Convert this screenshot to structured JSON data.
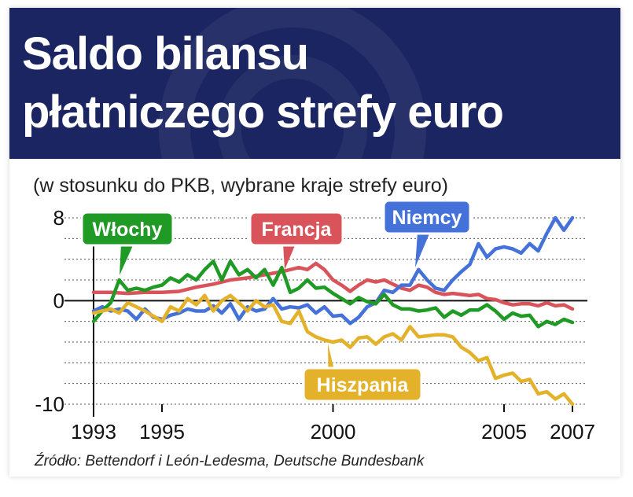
{
  "title": {
    "line1": "Saldo bilansu",
    "line2": "płatniczego strefy euro"
  },
  "subtitle": "(w stosunku do PKB, wybrane kraje strefy euro)",
  "source": "Źródło: Bettendorf i León-Ledesma, Deutsche Bundesbank",
  "colors": {
    "title_bg": "#1b2561",
    "Włochy": "#1f9a24",
    "Francja": "#d9545a",
    "Niemcy": "#4472d8",
    "Hiszpania": "#e4b12b"
  },
  "chart_data": {
    "type": "line",
    "title": "Saldo bilansu płatniczego strefy euro",
    "subtitle": "(w stosunku do PKB, wybrane kraje strefy euro)",
    "xlabel": "",
    "ylabel": "",
    "xlim": [
      1993,
      2007
    ],
    "ylim": [
      -10,
      8
    ],
    "x_ticks": [
      1993,
      1995,
      2000,
      2005,
      2007
    ],
    "y_ticks": [
      8,
      0,
      -10
    ],
    "grid": "dotted horizontal lines every 2 units",
    "legend": "callout labels",
    "series": [
      {
        "name": "Włochy",
        "x": [
          1993.0,
          1993.25,
          1993.5,
          1993.75,
          1994.0,
          1994.25,
          1994.5,
          1994.75,
          1995.0,
          1995.25,
          1995.5,
          1995.75,
          1996.0,
          1996.25,
          1996.5,
          1996.75,
          1997.0,
          1997.25,
          1997.5,
          1997.75,
          1998.0,
          1998.25,
          1998.5,
          1998.75,
          1999.0,
          1999.25,
          1999.5,
          1999.75,
          2000.0,
          2000.25,
          2000.5,
          2000.75,
          2001.0,
          2001.25,
          2001.5,
          2001.75,
          2002.0,
          2002.25,
          2002.5,
          2002.75,
          2003.0,
          2003.25,
          2003.5,
          2003.75,
          2004.0,
          2004.25,
          2004.5,
          2004.75,
          2005.0,
          2005.25,
          2005.5,
          2005.75,
          2006.0,
          2006.25,
          2006.5,
          2006.75,
          2007.0
        ],
        "values": [
          -2.0,
          -1.0,
          -0.2,
          2.0,
          1.0,
          1.2,
          1.0,
          1.3,
          1.5,
          2.2,
          1.8,
          2.5,
          2.0,
          3.0,
          3.8,
          2.0,
          3.8,
          2.5,
          3.0,
          2.2,
          3.0,
          1.5,
          3.2,
          0.8,
          1.2,
          2.0,
          1.2,
          1.3,
          0.7,
          0.2,
          -0.3,
          0.3,
          -0.1,
          -0.3,
          0.6,
          -0.4,
          -0.8,
          -0.8,
          -1.0,
          -0.9,
          -0.7,
          -1.6,
          -1.0,
          -1.4,
          -0.9,
          -0.9,
          -0.4,
          -1.0,
          -1.8,
          -1.2,
          -1.5,
          -1.4,
          -2.5,
          -2.0,
          -2.3,
          -1.8,
          -2.1
        ]
      },
      {
        "name": "Francja",
        "x": [
          1993.0,
          1993.5,
          1994.0,
          1994.5,
          1995.0,
          1995.5,
          1996.0,
          1996.5,
          1997.0,
          1997.5,
          1998.0,
          1998.5,
          1999.0,
          1999.25,
          1999.5,
          1999.75,
          2000.0,
          2000.25,
          2000.5,
          2000.75,
          2001.0,
          2001.25,
          2001.5,
          2001.75,
          2002.0,
          2002.25,
          2002.5,
          2002.75,
          2003.0,
          2003.25,
          2003.5,
          2003.75,
          2004.0,
          2004.25,
          2004.5,
          2004.75,
          2005.0,
          2005.25,
          2005.5,
          2005.75,
          2006.0,
          2006.25,
          2006.5,
          2006.75,
          2007.0
        ],
        "values": [
          0.8,
          0.8,
          0.7,
          0.8,
          0.8,
          0.9,
          1.3,
          1.6,
          2.0,
          2.2,
          2.5,
          2.8,
          3.2,
          3.0,
          3.6,
          3.0,
          2.0,
          1.5,
          0.9,
          1.5,
          2.0,
          1.8,
          2.0,
          1.6,
          1.2,
          1.0,
          1.5,
          1.3,
          0.8,
          0.6,
          0.7,
          0.6,
          0.5,
          0.6,
          0.2,
          0.1,
          -0.2,
          -0.4,
          -0.3,
          -0.3,
          -0.5,
          -0.2,
          -0.5,
          -0.4,
          -0.8
        ]
      },
      {
        "name": "Niemcy",
        "x": [
          1993.0,
          1993.25,
          1993.5,
          1993.75,
          1994.0,
          1994.25,
          1994.5,
          1994.75,
          1995.0,
          1995.25,
          1995.5,
          1995.75,
          1996.0,
          1996.25,
          1996.5,
          1996.75,
          1997.0,
          1997.25,
          1997.5,
          1997.75,
          1998.0,
          1998.25,
          1998.5,
          1998.75,
          1999.0,
          1999.25,
          1999.5,
          1999.75,
          2000.0,
          2000.25,
          2000.5,
          2000.75,
          2001.0,
          2001.25,
          2001.5,
          2001.75,
          2002.0,
          2002.25,
          2002.5,
          2002.75,
          2003.0,
          2003.25,
          2003.5,
          2003.75,
          2004.0,
          2004.25,
          2004.5,
          2004.75,
          2005.0,
          2005.25,
          2005.5,
          2005.75,
          2006.0,
          2006.25,
          2006.5,
          2006.75,
          2007.0
        ],
        "values": [
          -1.0,
          -0.6,
          -1.0,
          -0.8,
          -1.0,
          -1.8,
          -0.8,
          -1.6,
          -1.8,
          -1.4,
          -1.2,
          -0.8,
          -1.0,
          -1.0,
          -0.5,
          -1.2,
          -0.3,
          -1.8,
          -0.6,
          -1.0,
          -0.8,
          0.2,
          -0.8,
          -0.6,
          -0.7,
          -0.4,
          -1.2,
          -0.6,
          -1.5,
          -1.4,
          -2.2,
          -1.6,
          -0.6,
          -0.2,
          1.0,
          0.8,
          1.5,
          1.5,
          3.0,
          2.0,
          1.2,
          1.0,
          2.0,
          2.8,
          3.5,
          5.5,
          4.2,
          5.0,
          5.2,
          5.0,
          4.6,
          5.5,
          4.8,
          6.5,
          8.0,
          6.8,
          8.0
        ]
      },
      {
        "name": "Hiszpania",
        "x": [
          1993.0,
          1993.25,
          1993.5,
          1993.75,
          1994.0,
          1994.25,
          1994.5,
          1994.75,
          1995.0,
          1995.25,
          1995.5,
          1995.75,
          1996.0,
          1996.25,
          1996.5,
          1996.75,
          1997.0,
          1997.25,
          1997.5,
          1997.75,
          1998.0,
          1998.25,
          1998.5,
          1998.75,
          1999.0,
          1999.25,
          1999.5,
          1999.75,
          2000.0,
          2000.25,
          2000.5,
          2000.75,
          2001.0,
          2001.25,
          2001.5,
          2001.75,
          2002.0,
          2002.25,
          2002.5,
          2002.75,
          2003.0,
          2003.25,
          2003.5,
          2003.75,
          2004.0,
          2004.25,
          2004.5,
          2004.75,
          2005.0,
          2005.25,
          2005.5,
          2005.75,
          2006.0,
          2006.25,
          2006.5,
          2006.75,
          2007.0
        ],
        "values": [
          -1.2,
          -1.0,
          -0.8,
          -1.2,
          -0.2,
          -0.6,
          -1.0,
          -1.5,
          -2.0,
          -0.6,
          -1.0,
          0.2,
          -0.4,
          0.5,
          -1.0,
          0.0,
          0.5,
          -0.2,
          -1.0,
          0.0,
          -0.6,
          -0.4,
          -2.0,
          -2.2,
          -1.0,
          -3.0,
          -3.5,
          -3.8,
          -4.0,
          -3.8,
          -4.5,
          -3.6,
          -3.5,
          -4.2,
          -3.5,
          -3.2,
          -3.8,
          -2.5,
          -3.5,
          -3.4,
          -3.3,
          -3.3,
          -3.5,
          -4.5,
          -5.0,
          -5.8,
          -5.5,
          -7.5,
          -7.2,
          -7.0,
          -7.8,
          -7.6,
          -9.0,
          -8.8,
          -9.5,
          -9.0,
          -10.0
        ]
      }
    ]
  }
}
